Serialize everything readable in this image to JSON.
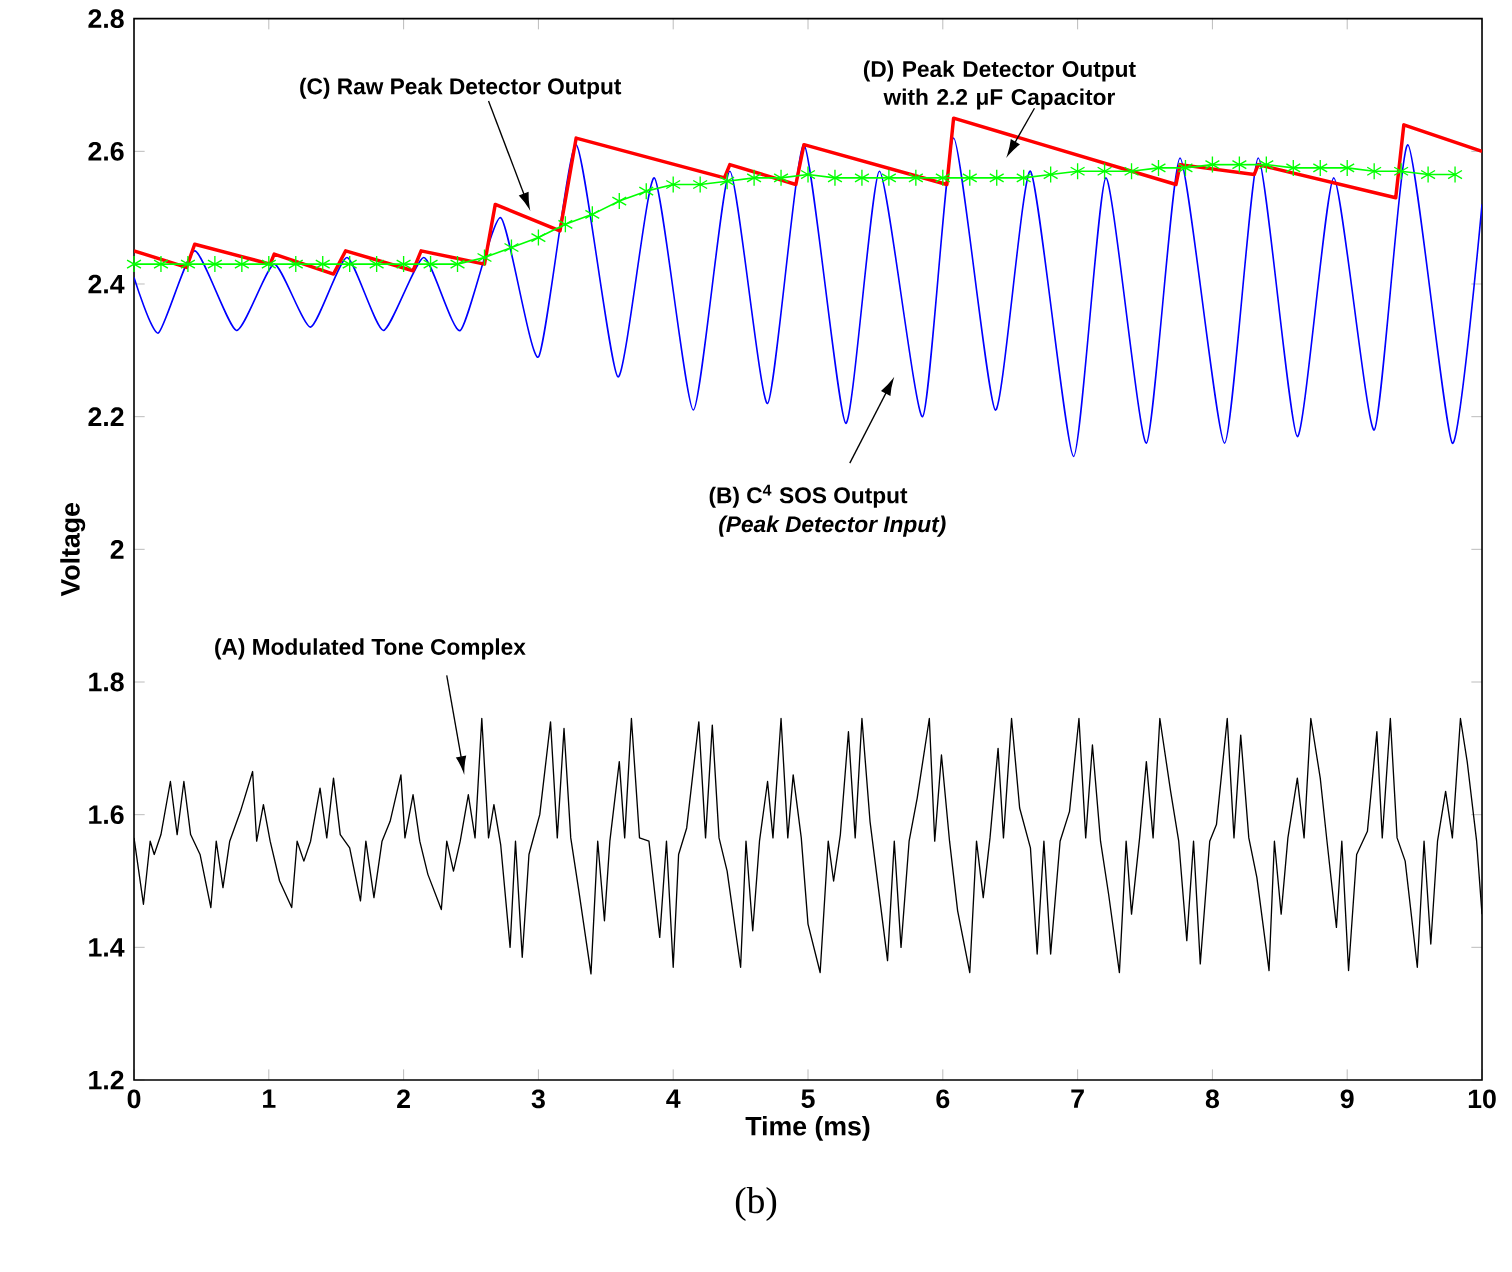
{
  "chart_data": {
    "type": "line",
    "xlabel": "Time (ms)",
    "ylabel": "Voltage",
    "xlim": [
      0,
      10
    ],
    "ylim": [
      1.2,
      2.8
    ],
    "xticks": [
      0,
      1,
      2,
      3,
      4,
      5,
      6,
      7,
      8,
      9,
      10
    ],
    "yticks": [
      1.2,
      1.4,
      1.6,
      1.8,
      2,
      2.2,
      2.4,
      2.6,
      2.8
    ],
    "grid": false,
    "marker": "none",
    "line_style": "solid",
    "series": [
      {
        "color": "#000000",
        "x": [
          0,
          0.07,
          0.12,
          0.15,
          0.2,
          0.27,
          0.32,
          0.37,
          0.42,
          0.49,
          0.57,
          0.61,
          0.66,
          0.71,
          0.79,
          0.88,
          0.91,
          0.96,
          1.01,
          1.08,
          1.17,
          1.21,
          1.26,
          1.31,
          1.38,
          1.43,
          1.48,
          1.53,
          1.6,
          1.68,
          1.72,
          1.78,
          1.84,
          1.9,
          1.98,
          2.01,
          2.07,
          2.12,
          2.18,
          2.28,
          2.32,
          2.37,
          2.42,
          2.48,
          2.53,
          2.58,
          2.63,
          2.67,
          2.72,
          2.79,
          2.83,
          2.88,
          2.93,
          3.01,
          3.09,
          3.14,
          3.19,
          3.24,
          3.3,
          3.39,
          3.44,
          3.49,
          3.53,
          3.6,
          3.64,
          3.69,
          3.75,
          3.82,
          3.9,
          3.95,
          4.0,
          4.04,
          4.1,
          4.19,
          4.24,
          4.29,
          4.34,
          4.4,
          4.5,
          4.54,
          4.59,
          4.64,
          4.7,
          4.74,
          4.8,
          4.85,
          4.89,
          4.95,
          5.0,
          5.09,
          5.15,
          5.19,
          5.24,
          5.3,
          5.35,
          5.4,
          5.46,
          5.59,
          5.64,
          5.69,
          5.75,
          5.81,
          5.9,
          5.94,
          5.99,
          6.05,
          6.11,
          6.2,
          6.25,
          6.3,
          6.35,
          6.41,
          6.45,
          6.51,
          6.57,
          6.65,
          6.7,
          6.75,
          6.8,
          6.87,
          6.94,
          7.01,
          7.06,
          7.11,
          7.17,
          7.23,
          7.31,
          7.36,
          7.4,
          7.46,
          7.51,
          7.56,
          7.61,
          7.69,
          7.75,
          7.81,
          7.86,
          7.91,
          7.98,
          8.03,
          8.11,
          8.16,
          8.21,
          8.27,
          8.33,
          8.42,
          8.46,
          8.51,
          8.56,
          8.63,
          8.68,
          8.73,
          8.8,
          8.85,
          8.92,
          8.96,
          9.01,
          9.07,
          9.15,
          9.22,
          9.26,
          9.32,
          9.37,
          9.43,
          9.52,
          9.57,
          9.62,
          9.67,
          9.73,
          9.78,
          9.84,
          9.89,
          9.96,
          10.0
        ],
        "values": [
          1.565,
          1.465,
          1.56,
          1.54,
          1.57,
          1.65,
          1.57,
          1.65,
          1.57,
          1.54,
          1.46,
          1.56,
          1.49,
          1.56,
          1.605,
          1.665,
          1.56,
          1.615,
          1.56,
          1.5,
          1.46,
          1.56,
          1.53,
          1.56,
          1.64,
          1.565,
          1.655,
          1.57,
          1.55,
          1.47,
          1.56,
          1.475,
          1.56,
          1.59,
          1.66,
          1.565,
          1.63,
          1.56,
          1.51,
          1.457,
          1.56,
          1.515,
          1.56,
          1.63,
          1.565,
          1.745,
          1.565,
          1.615,
          1.555,
          1.4,
          1.56,
          1.385,
          1.54,
          1.6,
          1.74,
          1.565,
          1.73,
          1.565,
          1.485,
          1.36,
          1.56,
          1.44,
          1.56,
          1.68,
          1.565,
          1.745,
          1.565,
          1.56,
          1.415,
          1.56,
          1.37,
          1.54,
          1.58,
          1.74,
          1.565,
          1.735,
          1.565,
          1.515,
          1.37,
          1.56,
          1.425,
          1.56,
          1.65,
          1.565,
          1.745,
          1.565,
          1.66,
          1.565,
          1.435,
          1.362,
          1.56,
          1.5,
          1.57,
          1.725,
          1.565,
          1.745,
          1.59,
          1.38,
          1.56,
          1.4,
          1.56,
          1.625,
          1.745,
          1.56,
          1.69,
          1.56,
          1.455,
          1.362,
          1.56,
          1.475,
          1.565,
          1.7,
          1.565,
          1.745,
          1.61,
          1.55,
          1.39,
          1.56,
          1.39,
          1.56,
          1.605,
          1.745,
          1.565,
          1.705,
          1.56,
          1.48,
          1.362,
          1.56,
          1.45,
          1.565,
          1.68,
          1.565,
          1.745,
          1.635,
          1.56,
          1.41,
          1.56,
          1.375,
          1.56,
          1.585,
          1.745,
          1.565,
          1.72,
          1.565,
          1.505,
          1.365,
          1.56,
          1.45,
          1.565,
          1.655,
          1.565,
          1.745,
          1.655,
          1.56,
          1.43,
          1.56,
          1.365,
          1.54,
          1.575,
          1.725,
          1.565,
          1.745,
          1.565,
          1.53,
          1.37,
          1.56,
          1.405,
          1.56,
          1.635,
          1.565,
          1.745,
          1.68,
          1.56,
          1.45
        ]
      },
      {
        "color": "#0000ff",
        "x": [
          0,
          0.18,
          0.45,
          0.76,
          1.04,
          1.31,
          1.58,
          1.85,
          2.15,
          2.42,
          2.72,
          3.0,
          3.28,
          3.59,
          3.86,
          4.15,
          4.42,
          4.7,
          4.97,
          5.28,
          5.53,
          5.85,
          6.08,
          6.39,
          6.65,
          6.97,
          7.21,
          7.51,
          7.76,
          8.09,
          8.34,
          8.63,
          8.9,
          9.2,
          9.45,
          9.78,
          10
        ],
        "values": [
          2.41,
          2.326,
          2.45,
          2.33,
          2.43,
          2.335,
          2.44,
          2.33,
          2.44,
          2.33,
          2.5,
          2.29,
          2.61,
          2.26,
          2.56,
          2.21,
          2.57,
          2.22,
          2.61,
          2.19,
          2.57,
          2.2,
          2.62,
          2.21,
          2.57,
          2.14,
          2.56,
          2.16,
          2.59,
          2.16,
          2.59,
          2.17,
          2.56,
          2.18,
          2.61,
          2.16,
          2.52
        ]
      },
      {
        "color": "#ff0000",
        "x": [
          0,
          0.39,
          0.45,
          1.01,
          1.04,
          1.48,
          1.57,
          2.07,
          2.13,
          2.6,
          2.68,
          3.16,
          3.28,
          4.38,
          4.42,
          4.91,
          4.97,
          6.03,
          6.08,
          7.73,
          7.76,
          8.31,
          8.34,
          9.36,
          9.42,
          10
        ],
        "values": [
          2.45,
          2.425,
          2.46,
          2.43,
          2.445,
          2.415,
          2.45,
          2.42,
          2.45,
          2.43,
          2.52,
          2.48,
          2.62,
          2.56,
          2.58,
          2.55,
          2.61,
          2.55,
          2.65,
          2.55,
          2.58,
          2.565,
          2.58,
          2.53,
          2.64,
          2.6
        ]
      },
      {
        "color": "#00ff00",
        "marker": "cross",
        "x": [
          0,
          0.2,
          0.4,
          0.6,
          0.8,
          1.0,
          1.2,
          1.4,
          1.6,
          1.8,
          2.0,
          2.2,
          2.4,
          2.6,
          2.8,
          3.0,
          3.2,
          3.4,
          3.6,
          3.8,
          4.0,
          4.2,
          4.4,
          4.6,
          4.8,
          5.0,
          5.2,
          5.4,
          5.6,
          5.8,
          6.0,
          6.2,
          6.4,
          6.6,
          6.8,
          7.0,
          7.2,
          7.4,
          7.6,
          7.8,
          8.0,
          8.2,
          8.4,
          8.6,
          8.8,
          9.0,
          9.2,
          9.4,
          9.6,
          9.8
        ],
        "values": [
          2.43,
          2.43,
          2.43,
          2.43,
          2.43,
          2.43,
          2.43,
          2.43,
          2.43,
          2.43,
          2.43,
          2.43,
          2.43,
          2.44,
          2.455,
          2.47,
          2.49,
          2.505,
          2.525,
          2.54,
          2.55,
          2.55,
          2.555,
          2.56,
          2.56,
          2.565,
          2.56,
          2.56,
          2.56,
          2.56,
          2.56,
          2.56,
          2.56,
          2.56,
          2.565,
          2.57,
          2.57,
          2.57,
          2.575,
          2.575,
          2.58,
          2.58,
          2.58,
          2.575,
          2.575,
          2.575,
          2.57,
          2.57,
          2.565,
          2.565
        ]
      }
    ],
    "annotations": [
      "(A) Modulated Tone Complex",
      "(B) C$^{4}$ SOS Output",
      "(Peak Detector Input)",
      "(C) Raw Peak Detector Output",
      "(D) Peak Detector Output with 2.2 μF Capacitor",
      "(b)"
    ]
  }
}
